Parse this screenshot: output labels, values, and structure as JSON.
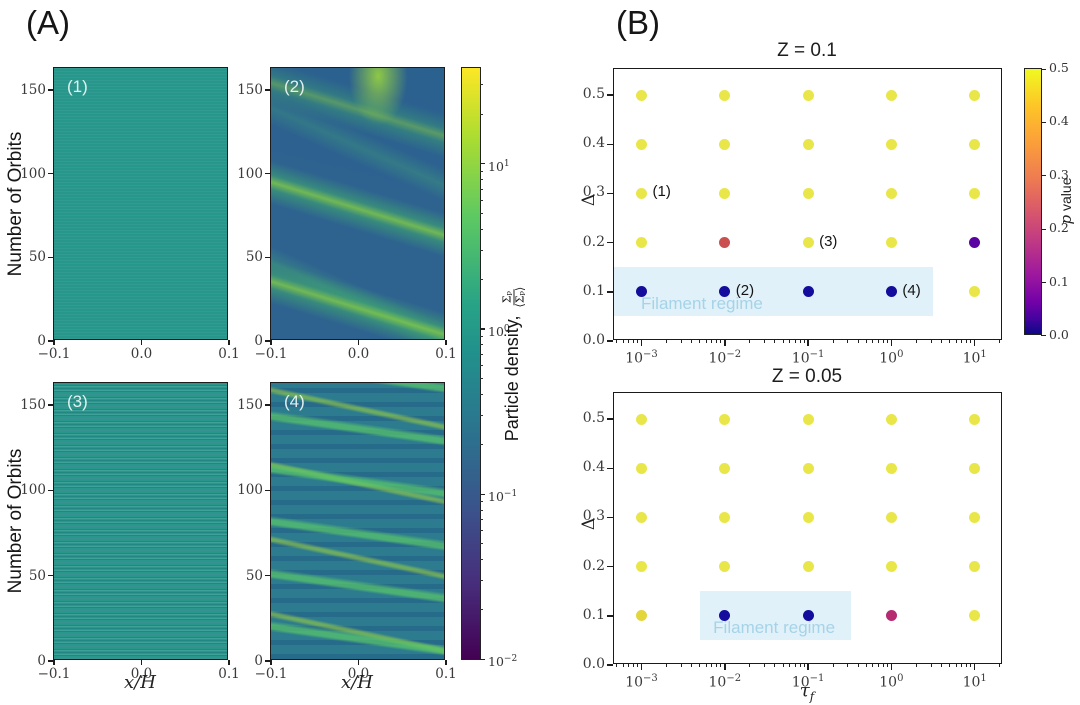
{
  "figure": {
    "panel_a_label": "(A)",
    "panel_b_label": "(B)"
  },
  "colors": {
    "dot_yellow": "#e9e64a",
    "dot_navy": "#140c9c",
    "dot_red": "#c9504f",
    "dot_purple": "#5b02a3",
    "dot_magenta": "#b62a71",
    "dot_dark_yellow": "#e3d63c",
    "filament_box_fill": "#d9ecf7",
    "filament_text": "#a5d3e8",
    "heatmap_teal": "#27968b",
    "heatmap_blue": "#2e6390"
  },
  "chart_data": [
    {
      "type": "heatmap",
      "panel": "A",
      "ylabel": "Number of Orbits",
      "xlabel": "x/H",
      "xlim": [
        -0.1,
        0.1
      ],
      "ylim": [
        0,
        163
      ],
      "x_ticks": {
        "labels": [
          "−0.1",
          "0.0",
          "0.1"
        ],
        "fracs": [
          0,
          0.5,
          1
        ]
      },
      "y_ticks": {
        "labels": [
          "0",
          "50",
          "100",
          "150"
        ],
        "values": [
          0,
          50,
          100,
          150
        ],
        "ymax": 163
      },
      "subplots": [
        {
          "label": "(1)",
          "appearance": "uniform teal, no filaments (Σp ≈ ⟨Σp⟩ everywhere)"
        },
        {
          "label": "(2)",
          "appearance": "dark blue background with broad green diagonal filament bands drifting radially"
        },
        {
          "label": "(3)",
          "appearance": "teal with fine horizontal striations, no coherent filaments"
        },
        {
          "label": "(4)",
          "appearance": "blue-teal with many narrow diagonal green filaments and bright clumps"
        }
      ],
      "colorbar": {
        "label_prefix": "Particle density, ",
        "frac_num": "Σₚ",
        "frac_den": "⟨Σₚ⟩",
        "scale": "log",
        "tick_exps": [
          1,
          0,
          -1,
          -2
        ],
        "log_top": 1.58,
        "log_bottom": -2.01
      }
    },
    {
      "type": "scatter",
      "title": "Z = 0.1",
      "ylabel": "Δ",
      "xscale": "log",
      "xlim_log": [
        -3.33,
        1.34
      ],
      "ylim": [
        0,
        0.553
      ],
      "x_tick_exps": [
        -3,
        -2,
        -1,
        0,
        1
      ],
      "y_ticks": [
        "0.0",
        "0.1",
        "0.2",
        "0.3",
        "0.4",
        "0.5"
      ],
      "tau_values_exp": [
        -3,
        -2,
        -1,
        0,
        1
      ],
      "rows": [
        {
          "delta": 0.5,
          "p": [
            0.5,
            0.5,
            0.5,
            0.5,
            0.5
          ],
          "colors": [
            "#e9e64a",
            "#e9e64a",
            "#e9e64a",
            "#e9e64a",
            "#e9e64a"
          ]
        },
        {
          "delta": 0.4,
          "p": [
            0.5,
            0.5,
            0.5,
            0.5,
            0.5
          ],
          "colors": [
            "#e9e64a",
            "#e9e64a",
            "#e9e64a",
            "#e9e64a",
            "#e9e64a"
          ]
        },
        {
          "delta": 0.3,
          "p": [
            0.5,
            0.5,
            0.5,
            0.5,
            0.5
          ],
          "colors": [
            "#e9e64a",
            "#e9e64a",
            "#e9e64a",
            "#e9e64a",
            "#e9e64a"
          ]
        },
        {
          "delta": 0.2,
          "p": [
            0.5,
            0.28,
            0.5,
            0.5,
            0.1
          ],
          "colors": [
            "#e9e64a",
            "#c9504f",
            "#e9e64a",
            "#e9e64a",
            "#5b02a3"
          ]
        },
        {
          "delta": 0.1,
          "p": [
            0.0,
            0.0,
            0.0,
            0.0,
            0.5
          ],
          "colors": [
            "#140c9c",
            "#140c9c",
            "#140c9c",
            "#140c9c",
            "#e9e64a"
          ]
        }
      ],
      "annotations": [
        {
          "label": "(1)",
          "tau_exp": -3,
          "delta": 0.3
        },
        {
          "label": "(2)",
          "tau_exp": -2,
          "delta": 0.1
        },
        {
          "label": "(3)",
          "tau_exp": -1,
          "delta": 0.2
        },
        {
          "label": "(4)",
          "tau_exp": 0,
          "delta": 0.1
        }
      ],
      "filament_box": {
        "label": "Filament regime",
        "tau_log_range": [
          -3.33,
          0.5
        ],
        "delta_range": [
          0.05,
          0.15
        ],
        "label_anchor": "left"
      },
      "colorbar": {
        "label_italic": "p",
        "label_rest": " value",
        "lim": [
          0,
          0.5
        ],
        "ticks": [
          "0.0",
          "0.1",
          "0.2",
          "0.3",
          "0.4",
          "0.5"
        ]
      }
    },
    {
      "type": "scatter",
      "title": "Z = 0.05",
      "ylabel": "Δ",
      "xlabel_tau": "τ",
      "xlabel_sub": "f",
      "xscale": "log",
      "xlim_log": [
        -3.33,
        1.34
      ],
      "ylim": [
        0,
        0.553
      ],
      "x_tick_exps": [
        -3,
        -2,
        -1,
        0,
        1
      ],
      "y_ticks": [
        "0.0",
        "0.1",
        "0.2",
        "0.3",
        "0.4",
        "0.5"
      ],
      "tau_values_exp": [
        -3,
        -2,
        -1,
        0,
        1
      ],
      "rows": [
        {
          "delta": 0.5,
          "p": [
            0.5,
            0.5,
            0.5,
            0.5,
            0.5
          ],
          "colors": [
            "#e9e64a",
            "#e9e64a",
            "#e9e64a",
            "#e9e64a",
            "#e9e64a"
          ]
        },
        {
          "delta": 0.4,
          "p": [
            0.5,
            0.5,
            0.5,
            0.5,
            0.5
          ],
          "colors": [
            "#e9e64a",
            "#e9e64a",
            "#e9e64a",
            "#e9e64a",
            "#e9e64a"
          ]
        },
        {
          "delta": 0.3,
          "p": [
            0.5,
            0.5,
            0.5,
            0.5,
            0.5
          ],
          "colors": [
            "#e9e64a",
            "#e9e64a",
            "#e9e64a",
            "#e9e64a",
            "#e9e64a"
          ]
        },
        {
          "delta": 0.2,
          "p": [
            0.5,
            0.5,
            0.5,
            0.5,
            0.5
          ],
          "colors": [
            "#e9e64a",
            "#e9e64a",
            "#e9e64a",
            "#e9e64a",
            "#e9e64a"
          ]
        },
        {
          "delta": 0.1,
          "p": [
            0.47,
            0.0,
            0.0,
            0.22,
            0.5
          ],
          "colors": [
            "#e3d63c",
            "#140c9c",
            "#140c9c",
            "#b62a71",
            "#e9e64a"
          ]
        }
      ],
      "annotations": [],
      "filament_box": {
        "label": "Filament regime",
        "tau_log_range": [
          -2.3,
          -0.49
        ],
        "delta_range": [
          0.05,
          0.15
        ],
        "label_anchor": "center"
      }
    }
  ]
}
